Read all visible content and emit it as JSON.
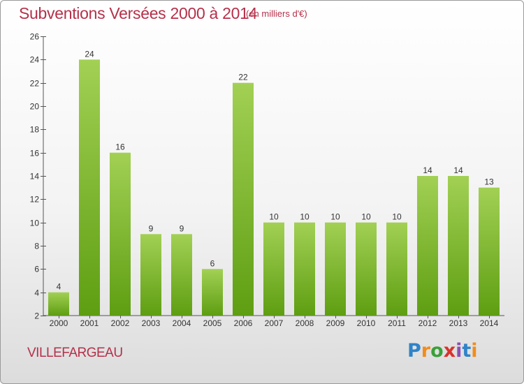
{
  "title": "Subventions Versées 2000 à 2014",
  "subtitle": "(en milliers d'€)",
  "commune": "VILLEFARGEAU",
  "brand": {
    "letters": [
      "P",
      "r",
      "o",
      "x",
      "i",
      "t",
      "i"
    ],
    "colors": [
      "#2f83c9",
      "#f28c1b",
      "#3aa03a",
      "#d8322b",
      "#8a4fb3",
      "#2f83c9",
      "#f28c1b"
    ]
  },
  "colors": {
    "bar_top": "#a2d054",
    "bar_bottom": "#5e9e12",
    "title": "#b5304a"
  },
  "chart_data": {
    "type": "bar",
    "categories": [
      "2000",
      "2001",
      "2002",
      "2003",
      "2004",
      "2005",
      "2006",
      "2007",
      "2008",
      "2009",
      "2010",
      "2011",
      "2012",
      "2013",
      "2014"
    ],
    "values": [
      4,
      24,
      16,
      9,
      9,
      6,
      22,
      10,
      10,
      10,
      10,
      10,
      14,
      14,
      13
    ],
    "title": "Subventions Versées 2000 à 2014",
    "xlabel": "",
    "ylabel": "",
    "ylim": [
      2,
      26
    ],
    "yticks": [
      2,
      4,
      6,
      8,
      10,
      12,
      14,
      16,
      18,
      20,
      22,
      24,
      26
    ],
    "grid": false,
    "legend": "none"
  }
}
